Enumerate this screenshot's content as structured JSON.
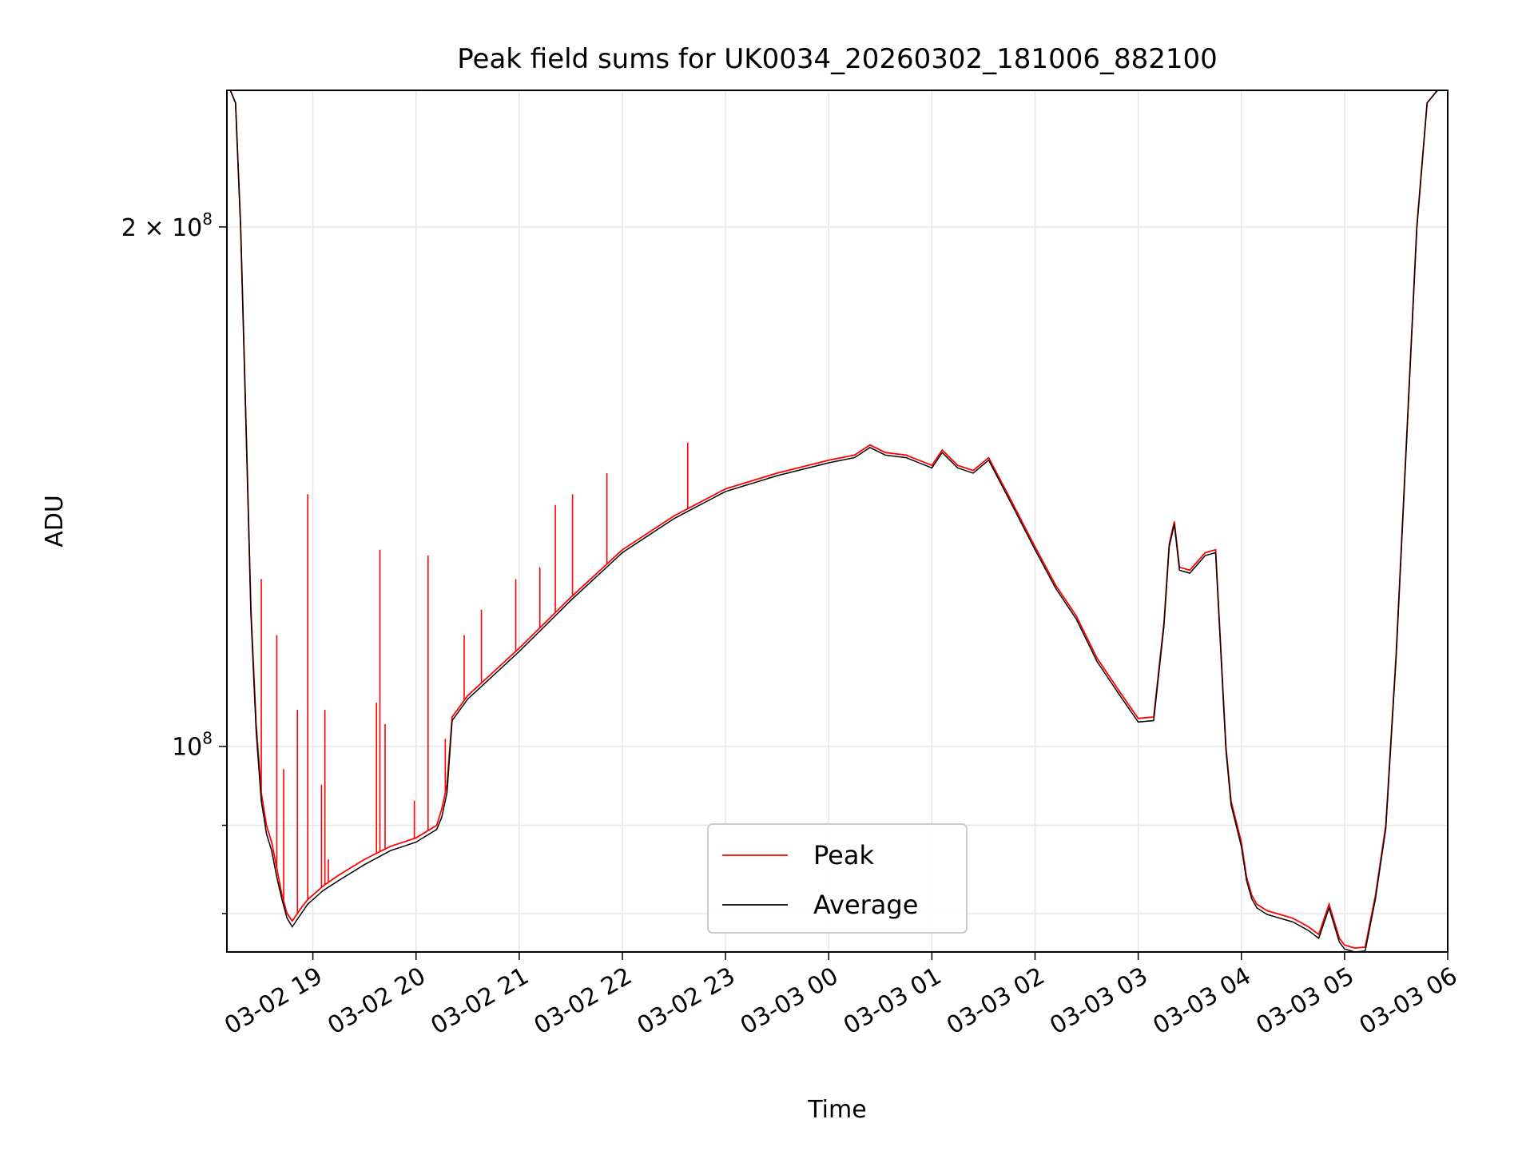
{
  "chart_data": {
    "type": "line",
    "title": "Peak field sums for UK0034_20260302_181006_882100",
    "xlabel": "Time",
    "ylabel": "ADU",
    "x_unit": "hours after 2026-03-02 18:00 (local clock)",
    "xlim_dates": [
      "03-02 18:10",
      "03-03 06:00"
    ],
    "ylim": [
      76000000,
      240000000
    ],
    "y_scale": "log",
    "grid": true,
    "legend_position": "lower-center",
    "x_ticks": [
      "03-02 19",
      "03-02 20",
      "03-02 21",
      "03-02 22",
      "03-02 23",
      "03-03 00",
      "03-03 01",
      "03-03 02",
      "03-03 03",
      "03-03 04",
      "03-03 05",
      "03-03 06"
    ],
    "y_ticks": [
      {
        "value": 200000000,
        "label_base": "2 × 10",
        "label_exp": "8"
      },
      {
        "value": 100000000,
        "label_base": "10",
        "label_exp": "8"
      }
    ],
    "series": [
      {
        "name": "Peak",
        "color": "#ff0000",
        "x": [
          "03-02 18:10",
          "03-02 18:12",
          "03-02 18:15",
          "03-02 18:18",
          "03-02 18:21",
          "03-02 18:24",
          "03-02 18:27",
          "03-02 18:30",
          "03-02 18:33",
          "03-02 18:36",
          "03-02 18:39",
          "03-02 18:42",
          "03-02 18:45",
          "03-02 18:48",
          "03-02 18:51",
          "03-02 18:54",
          "03-02 18:57",
          "03-02 19:00",
          "03-02 19:06",
          "03-02 19:15",
          "03-02 19:30",
          "03-02 19:45",
          "03-02 20:00",
          "03-02 20:12",
          "03-02 20:15",
          "03-02 20:18",
          "03-02 20:21",
          "03-02 20:30",
          "03-02 21:00",
          "03-02 21:30",
          "03-02 22:00",
          "03-02 22:30",
          "03-02 23:00",
          "03-02 23:30",
          "03-03 00:00",
          "03-03 00:15",
          "03-03 00:24",
          "03-03 00:33",
          "03-03 00:45",
          "03-03 01:00",
          "03-03 01:06",
          "03-03 01:15",
          "03-03 01:24",
          "03-03 01:33",
          "03-03 01:45",
          "03-03 02:00",
          "03-03 02:12",
          "03-03 02:24",
          "03-03 02:36",
          "03-03 02:48",
          "03-03 03:00",
          "03-03 03:09",
          "03-03 03:15",
          "03-03 03:18",
          "03-03 03:21",
          "03-03 03:24",
          "03-03 03:30",
          "03-03 03:39",
          "03-03 03:45",
          "03-03 03:51",
          "03-03 03:54",
          "03-03 04:00",
          "03-03 04:03",
          "03-03 04:06",
          "03-03 04:09",
          "03-03 04:15",
          "03-03 04:30",
          "03-03 04:39",
          "03-03 04:45",
          "03-03 04:51",
          "03-03 04:57",
          "03-03 05:00",
          "03-03 05:06",
          "03-03 05:12",
          "03-03 05:18",
          "03-03 05:24",
          "03-03 05:30",
          "03-03 05:36",
          "03-03 05:42",
          "03-03 05:48",
          "03-03 05:54",
          "03-03 06:00"
        ],
        "y": [
          240000000,
          240000000,
          236000000,
          200000000,
          155000000,
          120000000,
          103000000,
          94000000,
          90000000,
          88000000,
          85000000,
          82000000,
          80000000,
          79200000,
          80000000,
          80800000,
          81500000,
          82000000,
          83000000,
          84200000,
          86000000,
          87500000,
          88500000,
          90000000,
          92000000,
          95000000,
          104000000,
          107000000,
          114000000,
          122000000,
          130000000,
          136000000,
          141000000,
          144000000,
          146500000,
          147500000,
          149500000,
          148000000,
          147500000,
          145500000,
          148500000,
          145500000,
          144500000,
          147000000,
          139500000,
          130500000,
          124000000,
          119000000,
          112500000,
          108000000,
          103800000,
          104000000,
          118000000,
          131000000,
          135000000,
          127000000,
          126500000,
          129500000,
          130000000,
          100000000,
          93000000,
          88000000,
          84000000,
          82000000,
          81000000,
          80300000,
          79500000,
          78600000,
          77800000,
          81000000,
          77400000,
          76700000,
          76400000,
          76500000,
          82000000,
          90000000,
          113000000,
          150000000,
          200000000,
          236000000,
          240000000,
          240000000
        ]
      },
      {
        "name": "Average",
        "color": "#000000",
        "x": [
          "03-02 18:10",
          "03-02 18:12",
          "03-02 18:15",
          "03-02 18:18",
          "03-02 18:21",
          "03-02 18:24",
          "03-02 18:27",
          "03-02 18:30",
          "03-02 18:33",
          "03-02 18:36",
          "03-02 18:39",
          "03-02 18:42",
          "03-02 18:45",
          "03-02 18:48",
          "03-02 18:51",
          "03-02 18:54",
          "03-02 18:57",
          "03-02 19:00",
          "03-02 19:06",
          "03-02 19:15",
          "03-02 19:30",
          "03-02 19:45",
          "03-02 20:00",
          "03-02 20:12",
          "03-02 20:15",
          "03-02 20:18",
          "03-02 20:21",
          "03-02 20:30",
          "03-02 21:00",
          "03-02 21:30",
          "03-02 22:00",
          "03-02 22:30",
          "03-02 23:00",
          "03-02 23:30",
          "03-03 00:00",
          "03-03 00:15",
          "03-03 00:24",
          "03-03 00:33",
          "03-03 00:45",
          "03-03 01:00",
          "03-03 01:06",
          "03-03 01:15",
          "03-03 01:24",
          "03-03 01:33",
          "03-03 01:45",
          "03-03 02:00",
          "03-03 02:12",
          "03-03 02:24",
          "03-03 02:36",
          "03-03 02:48",
          "03-03 03:00",
          "03-03 03:09",
          "03-03 03:15",
          "03-03 03:18",
          "03-03 03:21",
          "03-03 03:24",
          "03-03 03:30",
          "03-03 03:39",
          "03-03 03:45",
          "03-03 03:51",
          "03-03 03:54",
          "03-03 04:00",
          "03-03 04:03",
          "03-03 04:06",
          "03-03 04:09",
          "03-03 04:15",
          "03-03 04:30",
          "03-03 04:39",
          "03-03 04:45",
          "03-03 04:51",
          "03-03 04:57",
          "03-03 05:00",
          "03-03 05:06",
          "03-03 05:12",
          "03-03 05:18",
          "03-03 05:24",
          "03-03 05:30",
          "03-03 05:36",
          "03-03 05:42",
          "03-03 05:48",
          "03-03 05:54",
          "03-03 06:00"
        ],
        "y": [
          240000000,
          240000000,
          236000000,
          200000000,
          155000000,
          119000000,
          102000000,
          93000000,
          89000000,
          87000000,
          84000000,
          81500000,
          79500000,
          78600000,
          79400000,
          80200000,
          81000000,
          81500000,
          82500000,
          83600000,
          85400000,
          87000000,
          88000000,
          89500000,
          91000000,
          94000000,
          103500000,
          106500000,
          113500000,
          121500000,
          129500000,
          135500000,
          140500000,
          143500000,
          146000000,
          147000000,
          149000000,
          147500000,
          147000000,
          145000000,
          148000000,
          145000000,
          144000000,
          146500000,
          139000000,
          130000000,
          123500000,
          118500000,
          112000000,
          107500000,
          103300000,
          103500000,
          117500000,
          130500000,
          134500000,
          126500000,
          126000000,
          129000000,
          129500000,
          99500000,
          92500000,
          87500000,
          83600000,
          81600000,
          80600000,
          79900000,
          79100000,
          78200000,
          77400000,
          80600000,
          77000000,
          76300000,
          76000000,
          76100000,
          81600000,
          89600000,
          112500000,
          149500000,
          199500000,
          236000000,
          240000000,
          240000000
        ]
      }
    ],
    "peak_spikes": [
      {
        "x": "03-02 18:30",
        "y": 125000000
      },
      {
        "x": "03-02 18:39",
        "y": 116000000
      },
      {
        "x": "03-02 18:43",
        "y": 97000000
      },
      {
        "x": "03-02 18:51",
        "y": 105000000
      },
      {
        "x": "03-02 18:57",
        "y": 140000000
      },
      {
        "x": "03-02 19:05",
        "y": 95000000
      },
      {
        "x": "03-02 19:07",
        "y": 105000000
      },
      {
        "x": "03-02 19:09",
        "y": 86000000
      },
      {
        "x": "03-02 19:37",
        "y": 106000000
      },
      {
        "x": "03-02 19:39",
        "y": 130000000
      },
      {
        "x": "03-02 19:42",
        "y": 103000000
      },
      {
        "x": "03-02 19:59",
        "y": 93000000
      },
      {
        "x": "03-02 20:07",
        "y": 129000000
      },
      {
        "x": "03-02 20:17",
        "y": 101000000
      },
      {
        "x": "03-02 20:28",
        "y": 116000000
      },
      {
        "x": "03-02 20:38",
        "y": 120000000
      },
      {
        "x": "03-02 20:58",
        "y": 125000000
      },
      {
        "x": "03-02 21:12",
        "y": 127000000
      },
      {
        "x": "03-02 21:21",
        "y": 138000000
      },
      {
        "x": "03-02 21:31",
        "y": 140000000
      },
      {
        "x": "03-02 21:51",
        "y": 144000000
      },
      {
        "x": "03-02 22:38",
        "y": 150000000
      }
    ]
  }
}
